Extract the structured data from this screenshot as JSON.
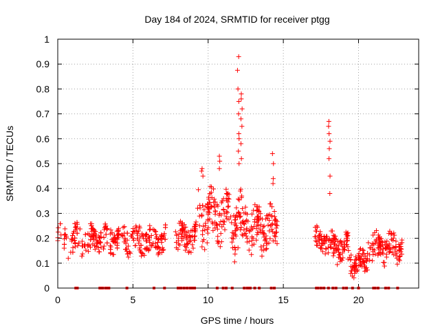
{
  "chart_data": {
    "type": "scatter",
    "title": "Day 184 of 2024, SRMTID for receiver ptgg",
    "xlabel": "GPS time / hours",
    "ylabel": "SRMTID / TECUs",
    "xlim": [
      0,
      24
    ],
    "ylim": [
      0,
      1
    ],
    "x_ticks": [
      "0",
      "5",
      "10",
      "15",
      "20"
    ],
    "y_ticks": [
      "0",
      "0.1",
      "0.2",
      "0.3",
      "0.4",
      "0.5",
      "0.6",
      "0.7",
      "0.8",
      "0.9",
      "1"
    ],
    "grid": true,
    "marker": "+",
    "color": "#ff0000",
    "series": [
      {
        "name": "SRMTID",
        "segments": [
          {
            "x_start": 0.0,
            "x_end": 7.2,
            "base": 0.19,
            "spread": 0.05
          },
          {
            "x_start": 7.8,
            "x_end": 9.2,
            "base": 0.2,
            "spread": 0.05
          },
          {
            "x_start": 9.3,
            "x_end": 11.4,
            "base": 0.28,
            "spread": 0.09
          },
          {
            "x_start": 11.4,
            "x_end": 12.6,
            "base": 0.25,
            "spread": 0.1
          },
          {
            "x_start": 12.6,
            "x_end": 14.6,
            "base": 0.23,
            "spread": 0.08
          },
          {
            "x_start": 17.1,
            "x_end": 17.9,
            "base": 0.19,
            "spread": 0.04
          },
          {
            "x_start": 17.9,
            "x_end": 19.3,
            "base": 0.16,
            "spread": 0.05
          },
          {
            "x_start": 19.3,
            "x_end": 20.6,
            "base": 0.1,
            "spread": 0.04
          },
          {
            "x_start": 20.6,
            "x_end": 22.9,
            "base": 0.16,
            "spread": 0.05
          }
        ],
        "spikes": [
          {
            "x": 12.0,
            "y": [
              0.93,
              0.875,
              0.8,
              0.75,
              0.7,
              0.62,
              0.6,
              0.55,
              0.5
            ]
          },
          {
            "x": 12.2,
            "y": [
              0.78,
              0.76,
              0.72,
              0.68,
              0.65,
              0.58,
              0.52
            ]
          },
          {
            "x": 14.3,
            "y": [
              0.54,
              0.5,
              0.44,
              0.42
            ]
          },
          {
            "x": 18.05,
            "y": [
              0.67,
              0.65,
              0.62,
              0.59,
              0.56,
              0.52,
              0.45,
              0.38
            ]
          },
          {
            "x": 10.8,
            "y": [
              0.53,
              0.51,
              0.48
            ]
          },
          {
            "x": 9.6,
            "y": [
              0.48,
              0.47,
              0.45
            ]
          }
        ],
        "zero_points": [
          1.2,
          1.3,
          2.8,
          2.9,
          3.0,
          3.2,
          3.3,
          3.4,
          4.6,
          6.4,
          7.1,
          8.0,
          8.1,
          8.2,
          8.4,
          8.6,
          8.8,
          8.9,
          9.0,
          9.1,
          10.6,
          11.0,
          11.2,
          11.6,
          12.4,
          12.6,
          12.7,
          12.8,
          13.1,
          13.4,
          14.2,
          14.4,
          17.2,
          17.3,
          17.5,
          17.7,
          18.0,
          18.3,
          18.5,
          19.0,
          19.2,
          19.6,
          20.0,
          21.0,
          21.1,
          21.3,
          21.8,
          22.0,
          22.6
        ]
      }
    ]
  }
}
